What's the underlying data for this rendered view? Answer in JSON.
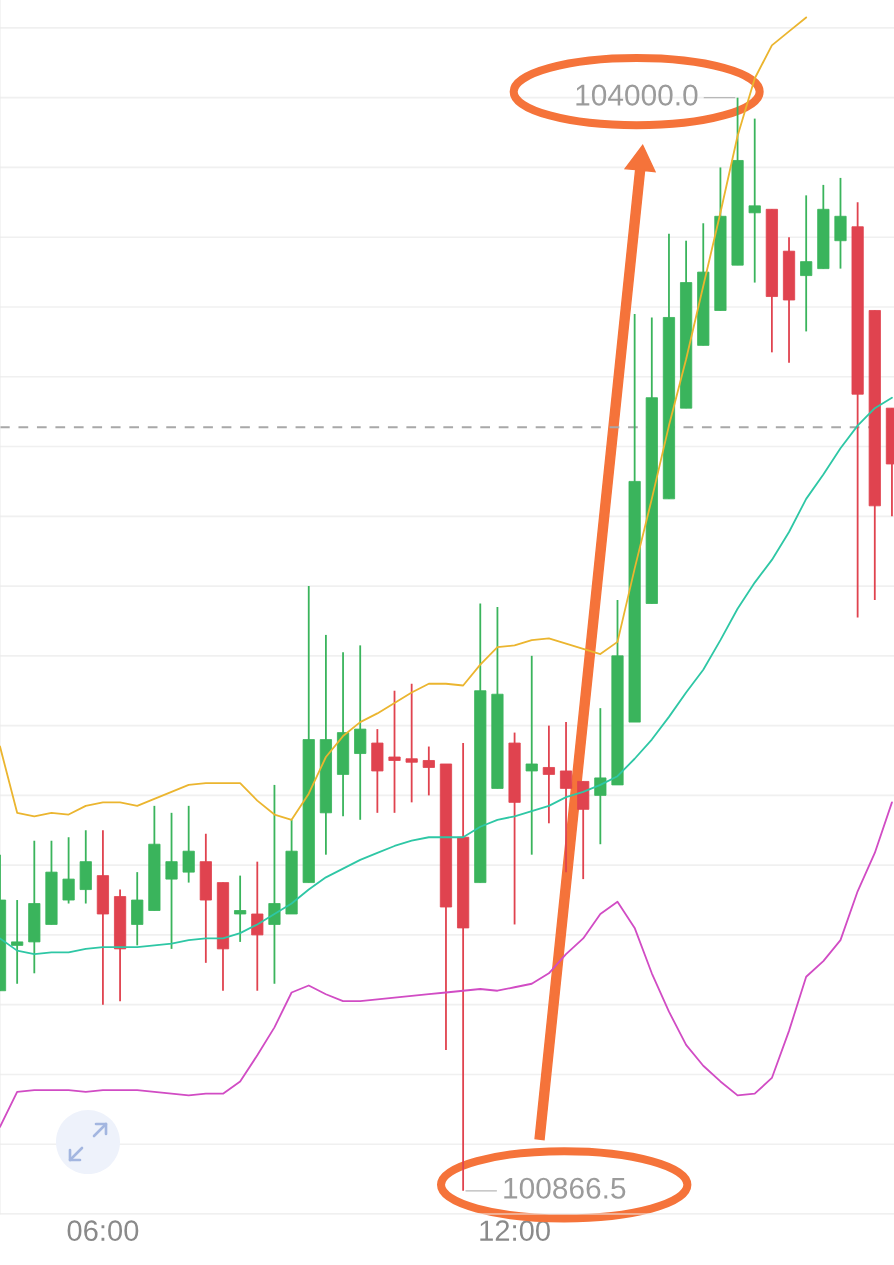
{
  "chart_data": {
    "type": "candlestick",
    "x": [
      4.5,
      4.75,
      5.0,
      5.25,
      5.5,
      5.75,
      6.0,
      6.25,
      6.5,
      6.75,
      7.0,
      7.25,
      7.5,
      7.75,
      8.0,
      8.25,
      8.5,
      8.75,
      9.0,
      9.25,
      9.5,
      9.75,
      10.0,
      10.25,
      10.5,
      10.75,
      11.0,
      11.25,
      11.5,
      11.75,
      12.0,
      12.25,
      12.5,
      12.75,
      13.0,
      13.25,
      13.5,
      13.75,
      14.0,
      14.25,
      14.5,
      14.75,
      15.0,
      15.25,
      15.5,
      15.75,
      16.0,
      16.25,
      16.5,
      16.75,
      17.0,
      17.25,
      17.5
    ],
    "ohlc": [
      [
        101440,
        101830,
        101440,
        101700
      ],
      [
        101570,
        101700,
        101460,
        101580
      ],
      [
        101580,
        101870,
        101490,
        101690
      ],
      [
        101630,
        101870,
        101630,
        101780
      ],
      [
        101700,
        101880,
        101690,
        101760
      ],
      [
        101730,
        101900,
        101690,
        101810
      ],
      [
        101770,
        101900,
        101400,
        101660
      ],
      [
        101710,
        101730,
        101410,
        101560
      ],
      [
        101630,
        101780,
        101570,
        101700
      ],
      [
        101670,
        101970,
        101670,
        101860
      ],
      [
        101760,
        101950,
        101560,
        101810
      ],
      [
        101780,
        101970,
        101750,
        101840
      ],
      [
        101810,
        101890,
        101520,
        101700
      ],
      [
        101750,
        101750,
        101440,
        101560
      ],
      [
        101660,
        101770,
        101580,
        101670
      ],
      [
        101660,
        101810,
        101440,
        101600
      ],
      [
        101630,
        102030,
        101460,
        101690
      ],
      [
        101660,
        101930,
        101660,
        101840
      ],
      [
        101750,
        102600,
        101750,
        102160
      ],
      [
        101950,
        102460,
        101830,
        102160
      ],
      [
        102060,
        102410,
        101940,
        102180
      ],
      [
        102120,
        102430,
        101930,
        102190
      ],
      [
        102150,
        102190,
        101950,
        102070
      ],
      [
        102110,
        102300,
        101950,
        102100
      ],
      [
        102105,
        102320,
        101980,
        102095
      ],
      [
        102100,
        102140,
        102000,
        102080
      ],
      [
        102090,
        102090,
        101270,
        101680
      ],
      [
        101880,
        102150,
        100866.5,
        101620
      ],
      [
        101750,
        102550,
        101750,
        102300
      ],
      [
        102020,
        102540,
        102020,
        102290
      ],
      [
        102150,
        102180,
        101630,
        101980
      ],
      [
        102070,
        102400,
        101830,
        102090
      ],
      [
        102080,
        102200,
        101920,
        102060
      ],
      [
        102070,
        102210,
        101780,
        102020
      ],
      [
        102040,
        102040,
        101760,
        101960
      ],
      [
        102000,
        102250,
        101860,
        102050
      ],
      [
        102030,
        102560,
        102030,
        102400
      ],
      [
        102210,
        103380,
        102210,
        102900
      ],
      [
        102550,
        103370,
        102550,
        103140
      ],
      [
        102850,
        103610,
        102850,
        103370
      ],
      [
        103110,
        103590,
        103110,
        103470
      ],
      [
        103290,
        103640,
        103290,
        103500
      ],
      [
        103390,
        103800,
        103390,
        103660
      ],
      [
        103520,
        104000.0,
        103520,
        103820
      ],
      [
        103670,
        103940,
        103470,
        103690
      ],
      [
        103680,
        103680,
        103270,
        103430
      ],
      [
        103560,
        103600,
        103240,
        103420
      ],
      [
        103490,
        103720,
        103330,
        103530
      ],
      [
        103510,
        103750,
        103510,
        103680
      ],
      [
        103590,
        103770,
        103510,
        103660
      ],
      [
        103630,
        103700,
        102510,
        103150
      ],
      [
        103390,
        103390,
        102560,
        102830
      ],
      [
        103110,
        103110,
        102800,
        102950
      ]
    ],
    "colors": [
      "#3ab45c",
      "#3ab45c",
      "#3ab45c",
      "#3ab45c",
      "#3ab45c",
      "#3ab45c",
      "#e0434f",
      "#e0434f",
      "#3ab45c",
      "#3ab45c",
      "#3ab45c",
      "#3ab45c",
      "#e0434f",
      "#e0434f",
      "#3ab45c",
      "#e0434f",
      "#3ab45c",
      "#3ab45c",
      "#3ab45c",
      "#3ab45c",
      "#3ab45c",
      "#3ab45c",
      "#e0434f",
      "#e0434f",
      "#e0434f",
      "#e0434f",
      "#e0434f",
      "#e0434f",
      "#3ab45c",
      "#3ab45c",
      "#e0434f",
      "#3ab45c",
      "#e0434f",
      "#e0434f",
      "#e0434f",
      "#3ab45c",
      "#3ab45c",
      "#3ab45c",
      "#3ab45c",
      "#3ab45c",
      "#3ab45c",
      "#3ab45c",
      "#3ab45c",
      "#3ab45c",
      "#3ab45c",
      "#e0434f",
      "#e0434f",
      "#3ab45c",
      "#3ab45c",
      "#3ab45c",
      "#e0434f",
      "#e0434f",
      "#e0434f"
    ],
    "series": [
      {
        "type": "line",
        "color": "#ebb52f",
        "values": [
          102140,
          101950,
          101940,
          101950,
          101945,
          101970,
          101980,
          101980,
          101970,
          101990,
          102010,
          102030,
          102035,
          102035,
          102035,
          101985,
          101945,
          101930,
          102005,
          102110,
          102170,
          102210,
          102235,
          102265,
          102295,
          102320,
          102320,
          102315,
          102375,
          102425,
          102430,
          102445,
          102450,
          102435,
          102420,
          102405,
          102440,
          102650,
          102850,
          103060,
          103250,
          103460,
          103670,
          103890,
          104055,
          104150,
          104190,
          104230,
          null,
          null,
          null,
          null,
          null
        ]
      },
      {
        "type": "line",
        "color": "#2ec7a5",
        "values": [
          101590,
          101555,
          101545,
          101550,
          101550,
          101560,
          101565,
          101565,
          101565,
          101570,
          101575,
          101585,
          101590,
          101590,
          101605,
          101630,
          101660,
          101690,
          101730,
          101765,
          101790,
          101815,
          101835,
          101855,
          101870,
          101880,
          101880,
          101880,
          101910,
          101930,
          101940,
          101955,
          101970,
          101995,
          102010,
          102030,
          102055,
          102105,
          102160,
          102225,
          102295,
          102360,
          102445,
          102535,
          102610,
          102675,
          102755,
          102850,
          102920,
          102995,
          103060,
          103110,
          103140
        ]
      },
      {
        "type": "line",
        "color": "#d14cc4",
        "values": [
          101050,
          101150,
          101155,
          101155,
          101155,
          101150,
          101155,
          101155,
          101155,
          101150,
          101145,
          101140,
          101145,
          101145,
          101180,
          101255,
          101335,
          101435,
          101455,
          101430,
          101410,
          101410,
          101415,
          101420,
          101425,
          101430,
          101435,
          101440,
          101445,
          101440,
          101450,
          101460,
          101490,
          101545,
          101590,
          101660,
          101695,
          101620,
          101490,
          101380,
          101285,
          101225,
          101180,
          101140,
          101145,
          101190,
          101325,
          101480,
          101525,
          101585,
          101725,
          101835,
          101980
        ]
      }
    ],
    "xlim": [
      4.5,
      17.53
    ],
    "xticks": [
      {
        "value": 6,
        "label": "06:00"
      },
      {
        "value": 12,
        "label": "12:00"
      }
    ],
    "ylim": [
      100800,
      104280
    ],
    "yticks": [
      {
        "value": 100800,
        "label": null
      },
      {
        "value": 101000,
        "label": null
      },
      {
        "value": 101200,
        "label": null
      },
      {
        "value": 101400,
        "label": null
      },
      {
        "value": 101600,
        "label": null
      },
      {
        "value": 101800,
        "label": null
      },
      {
        "value": 102000,
        "label": null
      },
      {
        "value": 102200,
        "label": null
      },
      {
        "value": 102400,
        "label": null
      },
      {
        "value": 102600,
        "label": null
      },
      {
        "value": 102800,
        "label": null
      },
      {
        "value": 103000,
        "label": null
      },
      {
        "value": 103200,
        "label": null
      },
      {
        "value": 103400,
        "label": null
      },
      {
        "value": 103600,
        "label": null
      },
      {
        "value": 103800,
        "label": null
      },
      {
        "value": 104000,
        "label": null
      },
      {
        "value": 104200,
        "label": null
      }
    ],
    "tick_labels": "x",
    "grid": "y",
    "ref_lines": [
      {
        "axis": "y",
        "value": 103055,
        "color": "#a8a8a8",
        "line_style": "dashed"
      }
    ],
    "annotations": [
      {
        "text": "104000.0",
        "x": 15.25,
        "y": 104000.0
      },
      {
        "text": "100866.5",
        "x": 11.25,
        "y": 100866.5
      }
    ]
  }
}
